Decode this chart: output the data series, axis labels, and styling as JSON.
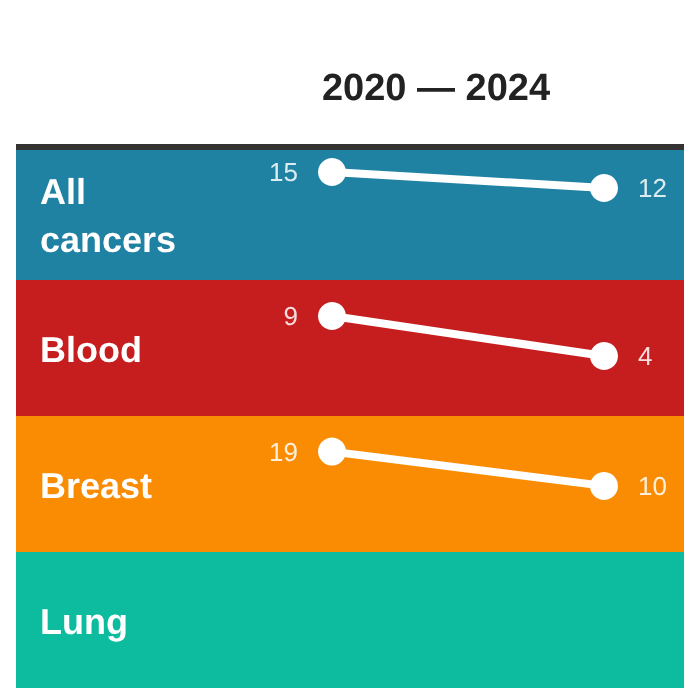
{
  "chart_data": [
    {
      "type": "line",
      "title": "2020 — 2024",
      "ylabel": "All cancers",
      "categories": [
        null,
        null
      ],
      "tick_labels": false,
      "grid": false,
      "marker": "circle",
      "data_labels": true,
      "series": [
        {
          "color": "#ffffff",
          "values": [
            15,
            12
          ]
        }
      ]
    },
    {
      "type": "line",
      "ylabel": "Blood",
      "categories": [
        null,
        null
      ],
      "tick_labels": false,
      "grid": false,
      "marker": "circle",
      "data_labels": true,
      "series": [
        {
          "color": "#ffffff",
          "values": [
            9,
            4
          ]
        }
      ]
    },
    {
      "type": "line",
      "ylabel": "Breast",
      "categories": [
        null,
        null
      ],
      "tick_labels": false,
      "grid": false,
      "marker": "circle",
      "data_labels": true,
      "series": [
        {
          "color": "#ffffff",
          "values": [
            19,
            10
          ]
        }
      ]
    },
    {
      "type": "other",
      "ylabel": "Lung"
    }
  ]
}
